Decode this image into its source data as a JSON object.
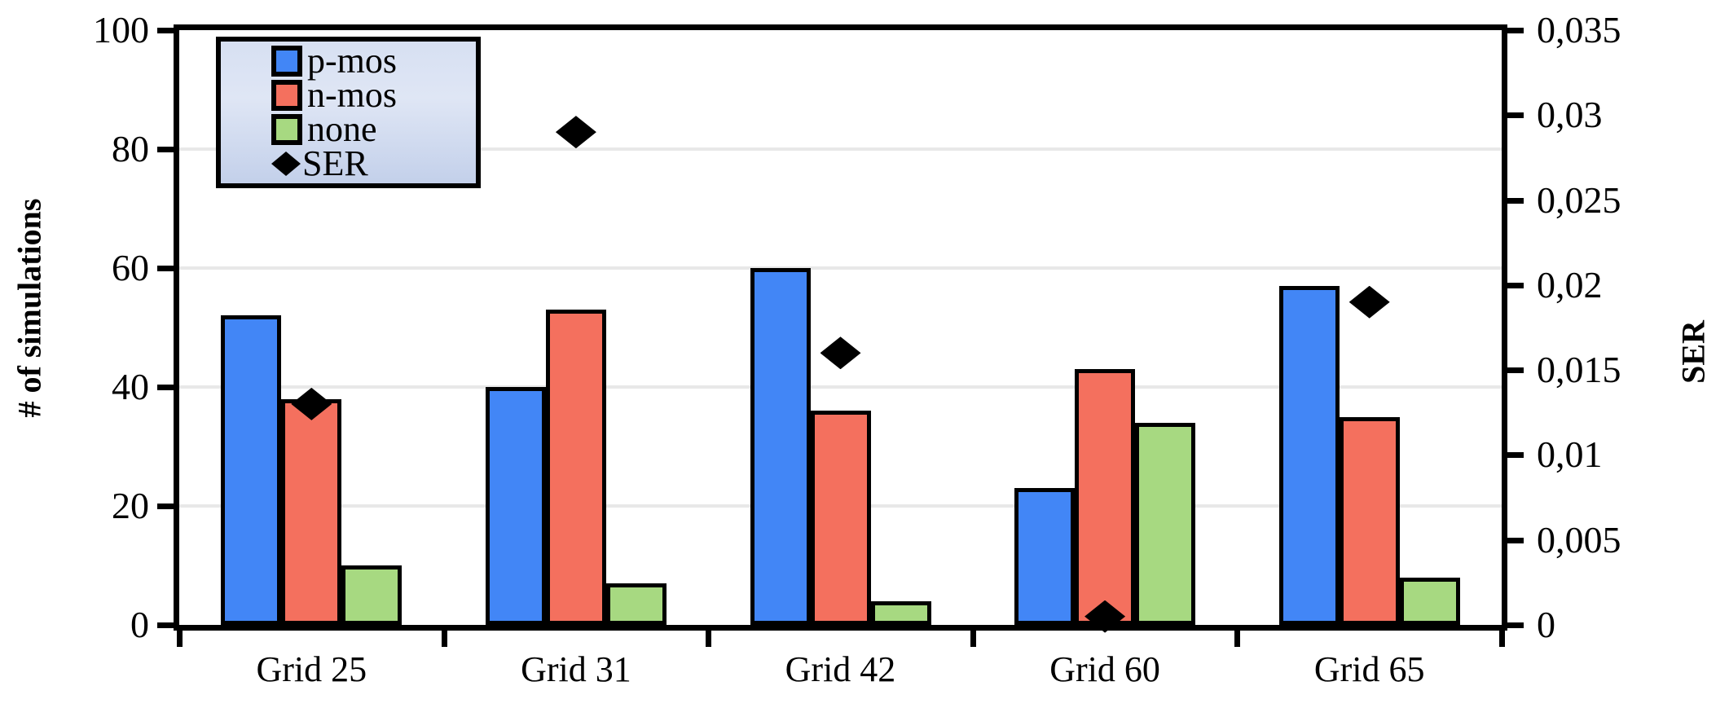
{
  "chart_data": {
    "type": "bar",
    "categories": [
      "Grid 25",
      "Grid 31",
      "Grid 42",
      "Grid 60",
      "Grid 65"
    ],
    "series": [
      {
        "name": "p-mos",
        "type": "bar",
        "axis": "left",
        "color": "#4286f6",
        "values": [
          52,
          40,
          60,
          23,
          57
        ]
      },
      {
        "name": "n-mos",
        "type": "bar",
        "axis": "left",
        "color": "#f4705e",
        "values": [
          38,
          53,
          36,
          43,
          35
        ]
      },
      {
        "name": "none",
        "type": "bar",
        "axis": "left",
        "color": "#a7d981",
        "values": [
          10,
          7,
          4,
          34,
          8
        ]
      },
      {
        "name": "SER",
        "type": "scatter",
        "marker": "diamond",
        "axis": "right",
        "color": "#000000",
        "values": [
          0.013,
          0.029,
          0.016,
          0.0005,
          0.019
        ]
      }
    ],
    "left_axis": {
      "label": "# of simulations",
      "min": 0,
      "max": 100,
      "tick_values": [
        0,
        20,
        40,
        60,
        80,
        100
      ],
      "tick_labels": [
        "0",
        "20",
        "40",
        "60",
        "80",
        "100"
      ]
    },
    "right_axis": {
      "label": "SER",
      "min": 0,
      "max": 0.035,
      "tick_values": [
        0,
        0.005,
        0.01,
        0.015,
        0.02,
        0.025,
        0.03,
        0.035
      ],
      "tick_labels": [
        "0",
        "0,005",
        "0,01",
        "0,015",
        "0,02",
        "0,025",
        "0,03",
        "0,035"
      ]
    },
    "grid": true,
    "legend_position": "top-left",
    "colors": {
      "grid_line": "#e8e8e8",
      "axis": "#000000",
      "background": "#ffffff",
      "legend_gradient_top": "#d7e0f2",
      "legend_gradient_bottom": "#c3d0ea"
    }
  }
}
